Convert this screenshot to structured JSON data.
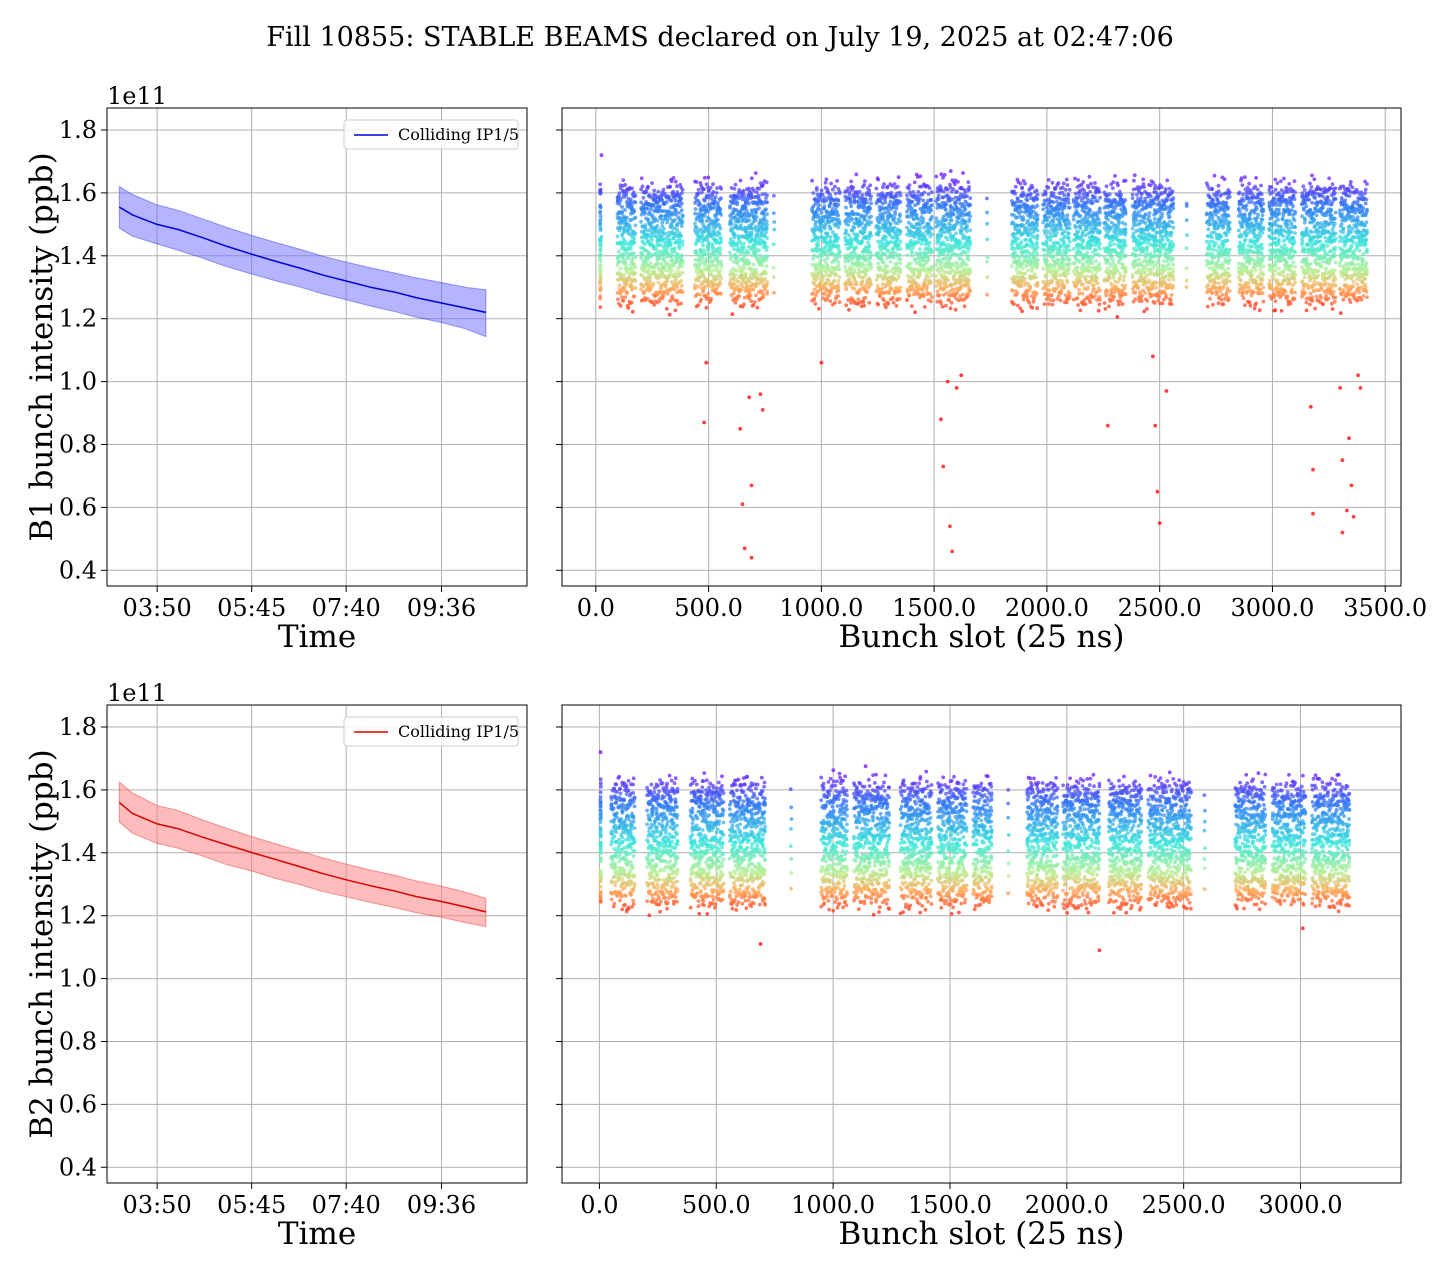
{
  "figure": {
    "title": "Fill 10855: STABLE BEAMS declared on July 19, 2025 at 02:47:06"
  },
  "chart_data": [
    {
      "id": "b1-time",
      "type": "line",
      "beam": "B1",
      "line_color": "#0000dd",
      "band_color": "#6a6aff",
      "xlabel": "Time",
      "ylabel": "B1 bunch intensity (ppb)",
      "y_offset_label": "1e11",
      "grid": true,
      "legend": {
        "position": "top-right",
        "entries": [
          "Colliding IP1/5"
        ]
      },
      "xlim": [
        "02:49",
        "11:20"
      ],
      "x_ticks": [
        "03:50",
        "05:45",
        "07:40",
        "09:36"
      ],
      "ylim": [
        0.35,
        1.87
      ],
      "y_ticks": [
        0.4,
        0.6,
        0.8,
        1.0,
        1.2,
        1.4,
        1.6,
        1.8
      ],
      "x": [
        "03:04",
        "03:20",
        "03:50",
        "04:15",
        "04:45",
        "05:15",
        "05:45",
        "06:15",
        "06:45",
        "07:10",
        "07:40",
        "08:10",
        "08:40",
        "09:05",
        "09:36",
        "10:05",
        "10:30"
      ],
      "series": [
        {
          "name": "Colliding IP1/5",
          "mean": [
            1.555,
            1.53,
            1.5,
            1.484,
            1.458,
            1.43,
            1.405,
            1.382,
            1.36,
            1.34,
            1.32,
            1.3,
            1.284,
            1.267,
            1.25,
            1.234,
            1.22
          ],
          "upper": [
            1.62,
            1.595,
            1.562,
            1.545,
            1.518,
            1.49,
            1.465,
            1.442,
            1.42,
            1.4,
            1.38,
            1.362,
            1.345,
            1.33,
            1.315,
            1.3,
            1.292
          ],
          "lower": [
            1.488,
            1.462,
            1.438,
            1.418,
            1.393,
            1.365,
            1.342,
            1.32,
            1.3,
            1.28,
            1.26,
            1.24,
            1.222,
            1.205,
            1.188,
            1.168,
            1.143
          ]
        }
      ]
    },
    {
      "id": "b1-slot",
      "type": "scatter",
      "beam": "B1",
      "xlabel": "Bunch slot (25 ns)",
      "grid": true,
      "xlim": [
        -150,
        3570
      ],
      "x_ticks": [
        0,
        500,
        1000,
        1500,
        2000,
        2500,
        3000,
        3500
      ],
      "ylim": [
        0.35,
        1.87
      ],
      "trains": [
        {
          "start": 20,
          "end": 20
        },
        {
          "start": 95,
          "end": 175
        },
        {
          "start": 200,
          "end": 385
        },
        {
          "start": 440,
          "end": 555
        },
        {
          "start": 595,
          "end": 760
        },
        {
          "start": 960,
          "end": 1080
        },
        {
          "start": 1105,
          "end": 1220
        },
        {
          "start": 1245,
          "end": 1350
        },
        {
          "start": 1380,
          "end": 1490
        },
        {
          "start": 1510,
          "end": 1660
        },
        {
          "start": 1845,
          "end": 1960
        },
        {
          "start": 1985,
          "end": 2100
        },
        {
          "start": 2120,
          "end": 2235
        },
        {
          "start": 2255,
          "end": 2350
        },
        {
          "start": 2380,
          "end": 2560
        },
        {
          "start": 2710,
          "end": 2810
        },
        {
          "start": 2850,
          "end": 2960
        },
        {
          "start": 2985,
          "end": 3100
        },
        {
          "start": 3130,
          "end": 3280
        },
        {
          "start": 3300,
          "end": 3420
        }
      ],
      "singles": [
        650,
        790,
        1190,
        1735,
        2620
      ],
      "band_top": 1.6,
      "band_bottom": 1.28,
      "outliers": [
        [
          25,
          1.72
        ],
        [
          25,
          1.46
        ],
        [
          480,
          0.87
        ],
        [
          490,
          1.06
        ],
        [
          640,
          0.85
        ],
        [
          650,
          0.61
        ],
        [
          660,
          0.47
        ],
        [
          680,
          0.95
        ],
        [
          690,
          0.44
        ],
        [
          690,
          0.67
        ],
        [
          730,
          0.96
        ],
        [
          740,
          0.91
        ],
        [
          1000,
          1.06
        ],
        [
          1530,
          0.88
        ],
        [
          1540,
          0.73
        ],
        [
          1560,
          1.0
        ],
        [
          1570,
          0.54
        ],
        [
          1580,
          0.46
        ],
        [
          1600,
          0.98
        ],
        [
          1620,
          1.02
        ],
        [
          2270,
          0.86
        ],
        [
          2470,
          1.08
        ],
        [
          2480,
          0.86
        ],
        [
          2490,
          0.65
        ],
        [
          2500,
          0.55
        ],
        [
          2530,
          0.97
        ],
        [
          3170,
          0.92
        ],
        [
          3180,
          0.72
        ],
        [
          3180,
          0.58
        ],
        [
          3300,
          0.98
        ],
        [
          3310,
          0.75
        ],
        [
          3310,
          0.52
        ],
        [
          3330,
          0.59
        ],
        [
          3340,
          0.82
        ],
        [
          3350,
          0.67
        ],
        [
          3360,
          0.57
        ],
        [
          3380,
          1.02
        ],
        [
          3390,
          0.98
        ]
      ]
    },
    {
      "id": "b2-time",
      "type": "line",
      "beam": "B2",
      "line_color": "#dd0000",
      "band_color": "#ff7a7a",
      "xlabel": "Time",
      "ylabel": "B2 bunch intensity (ppb)",
      "y_offset_label": "1e11",
      "grid": true,
      "legend": {
        "position": "top-right",
        "entries": [
          "Colliding IP1/5"
        ]
      },
      "xlim": [
        "02:49",
        "11:20"
      ],
      "x_ticks": [
        "03:50",
        "05:45",
        "07:40",
        "09:36"
      ],
      "ylim": [
        0.35,
        1.87
      ],
      "y_ticks": [
        0.4,
        0.6,
        0.8,
        1.0,
        1.2,
        1.4,
        1.6,
        1.8
      ],
      "x": [
        "03:04",
        "03:20",
        "03:50",
        "04:15",
        "04:45",
        "05:15",
        "05:45",
        "06:15",
        "06:45",
        "07:10",
        "07:40",
        "08:10",
        "08:40",
        "09:05",
        "09:36",
        "10:05",
        "10:30"
      ],
      "series": [
        {
          "name": "Colliding IP1/5",
          "mean": [
            1.56,
            1.525,
            1.492,
            1.477,
            1.45,
            1.425,
            1.401,
            1.378,
            1.355,
            1.335,
            1.314,
            1.295,
            1.278,
            1.261,
            1.245,
            1.228,
            1.212
          ],
          "upper": [
            1.625,
            1.59,
            1.55,
            1.535,
            1.505,
            1.478,
            1.452,
            1.428,
            1.405,
            1.385,
            1.364,
            1.345,
            1.328,
            1.311,
            1.294,
            1.275,
            1.255
          ],
          "lower": [
            1.498,
            1.462,
            1.43,
            1.415,
            1.39,
            1.362,
            1.342,
            1.318,
            1.298,
            1.278,
            1.26,
            1.242,
            1.225,
            1.21,
            1.195,
            1.178,
            1.165
          ]
        }
      ]
    },
    {
      "id": "b2-slot",
      "type": "scatter",
      "beam": "B2",
      "xlabel": "Bunch slot (25 ns)",
      "grid": true,
      "xlim": [
        -160,
        3430
      ],
      "x_ticks": [
        0,
        500,
        1000,
        1500,
        2000,
        2500,
        3000
      ],
      "ylim": [
        0.35,
        1.87
      ],
      "trains": [
        {
          "start": 5,
          "end": 5
        },
        {
          "start": 50,
          "end": 150
        },
        {
          "start": 205,
          "end": 335
        },
        {
          "start": 390,
          "end": 530
        },
        {
          "start": 560,
          "end": 710
        },
        {
          "start": 950,
          "end": 1060
        },
        {
          "start": 1090,
          "end": 1240
        },
        {
          "start": 1290,
          "end": 1420
        },
        {
          "start": 1450,
          "end": 1570
        },
        {
          "start": 1600,
          "end": 1680
        },
        {
          "start": 1830,
          "end": 1960
        },
        {
          "start": 1985,
          "end": 2140
        },
        {
          "start": 2180,
          "end": 2320
        },
        {
          "start": 2350,
          "end": 2530
        },
        {
          "start": 2720,
          "end": 2850
        },
        {
          "start": 2880,
          "end": 3020
        },
        {
          "start": 3050,
          "end": 3210
        }
      ],
      "singles": [
        820,
        1750,
        2590
      ],
      "band_top": 1.6,
      "band_bottom": 1.26,
      "outliers": [
        [
          5,
          1.72
        ],
        [
          5,
          1.46
        ],
        [
          690,
          1.11
        ],
        [
          2140,
          1.09
        ],
        [
          3010,
          1.16
        ]
      ]
    }
  ]
}
